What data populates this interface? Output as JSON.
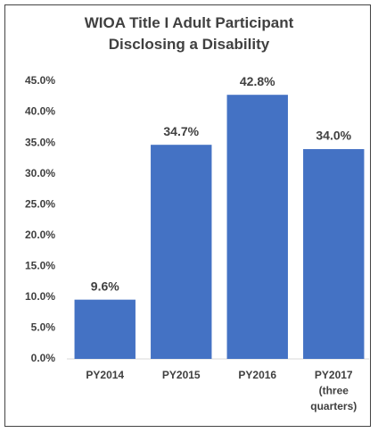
{
  "chart_data": {
    "type": "bar",
    "title": "WIOA Title I Adult Participant Disclosing a Disability",
    "categories": [
      "PY2014",
      "PY2015",
      "PY2016",
      "PY2017 (three quarters)"
    ],
    "values": [
      9.6,
      34.7,
      42.8,
      34.0
    ],
    "value_labels": [
      "9.6%",
      "34.7%",
      "42.8%",
      "34.0%"
    ],
    "color": "#4472c4",
    "ylim": [
      0,
      45
    ],
    "yticks": [
      {
        "value": 0,
        "label": "0.0%"
      },
      {
        "value": 5,
        "label": "5.0%"
      },
      {
        "value": 10,
        "label": "10.0%"
      },
      {
        "value": 15,
        "label": "15.0%"
      },
      {
        "value": 20,
        "label": "20.0%"
      },
      {
        "value": 25,
        "label": "25.0%"
      },
      {
        "value": 30,
        "label": "30.0%"
      },
      {
        "value": 35,
        "label": "35.0%"
      },
      {
        "value": 40,
        "label": "40.0%"
      },
      {
        "value": 45,
        "label": "45.0%"
      }
    ],
    "grid": false
  }
}
